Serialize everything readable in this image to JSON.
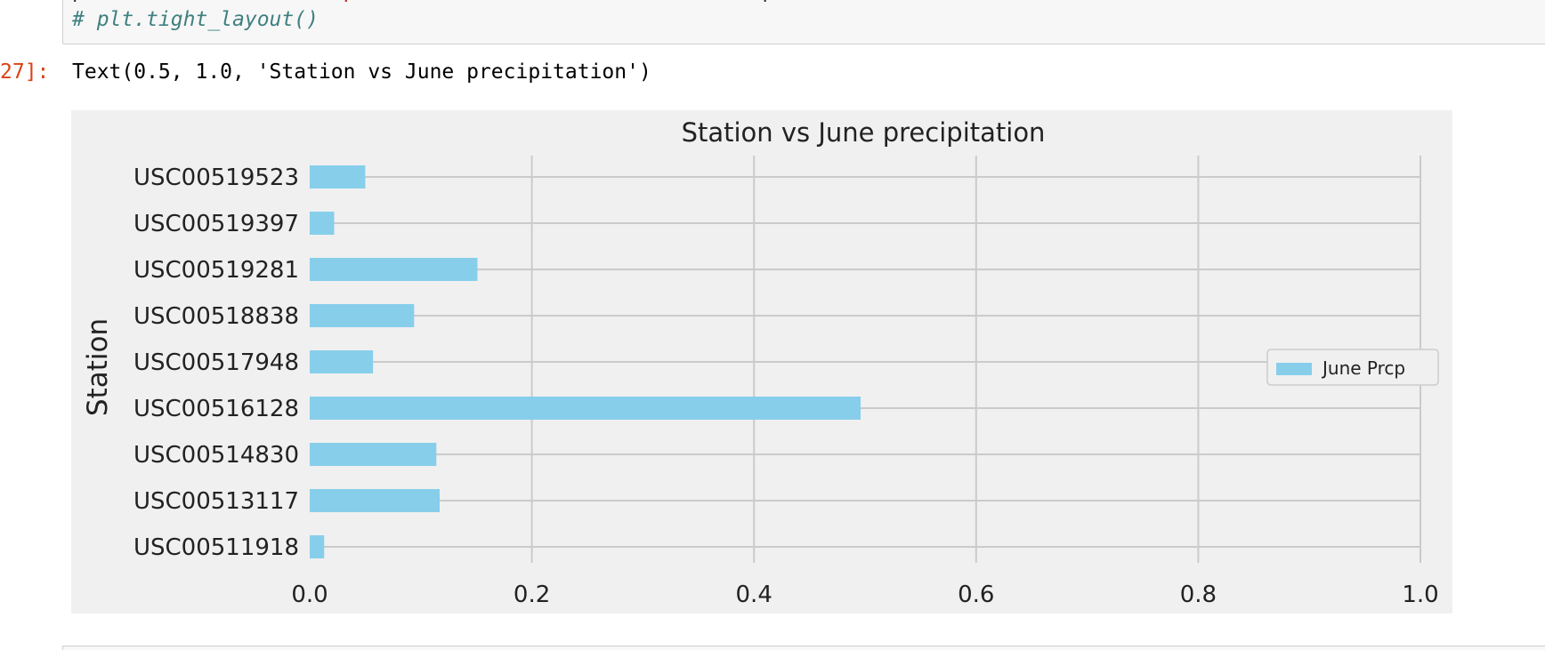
{
  "notebook": {
    "input_cell": {
      "partial_line_left": "p",
      "partial_line_mid": "p",
      "partial_line_right": "p",
      "comment_line": "# plt.tight_layout()"
    },
    "output": {
      "prompt": "27]:",
      "text": "Text(0.5, 1.0, 'Station vs June precipitation')"
    }
  },
  "colors": {
    "bar": "#87ceeb",
    "figure_bg": "#f0f0f0",
    "grid": "#cbcbcb",
    "prompt": "#d84315"
  },
  "chart_data": {
    "type": "bar",
    "orientation": "horizontal",
    "title": "Station vs June precipitation",
    "ylabel": "Station",
    "xlabel": "",
    "categories": [
      "USC00519523",
      "USC00519397",
      "USC00519281",
      "USC00518838",
      "USC00517948",
      "USC00516128",
      "USC00514830",
      "USC00513117",
      "USC00511918"
    ],
    "series": [
      {
        "name": "June Prcp",
        "values": [
          0.05,
          0.022,
          0.151,
          0.094,
          0.057,
          0.496,
          0.114,
          0.117,
          0.013
        ]
      }
    ],
    "xlim": [
      0.0,
      1.0
    ],
    "xticks": [
      "0.0",
      "0.2",
      "0.4",
      "0.6",
      "0.8",
      "1.0"
    ],
    "grid": true,
    "legend_position": "center-right"
  }
}
